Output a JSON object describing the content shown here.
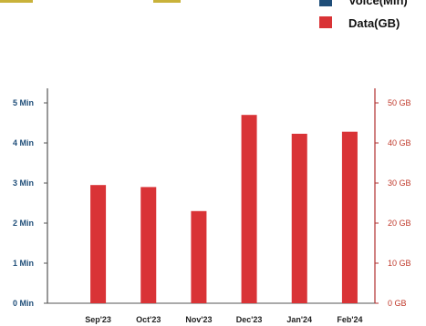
{
  "chart_data": {
    "type": "bar",
    "categories": [
      "Sep'23",
      "Oct'23",
      "Nov'23",
      "Dec'23",
      "Jan'24",
      "Feb'24"
    ],
    "series": [
      {
        "name": "Voice(Min)",
        "color": "#1f4e79",
        "axis": "left",
        "values": [
          0,
          0,
          0,
          0,
          0,
          0
        ]
      },
      {
        "name": "Data(GB)",
        "color": "#d93336",
        "axis": "right",
        "values": [
          29.5,
          29,
          23,
          47,
          42.3,
          42.8
        ]
      }
    ],
    "y_left": {
      "ylim": [
        0,
        5
      ],
      "ticks": [
        "0 Min",
        "1 Min",
        "2 Min",
        "3 Min",
        "4 Min",
        "5 Min"
      ],
      "color": "#1f4e79"
    },
    "y_right": {
      "ylim": [
        0,
        50
      ],
      "ticks": [
        "0 GB",
        "10 GB",
        "20 GB",
        "30 GB",
        "40 GB",
        "50 GB"
      ],
      "color": "#c0392b"
    },
    "legend_position": "top-right",
    "grid": false
  }
}
